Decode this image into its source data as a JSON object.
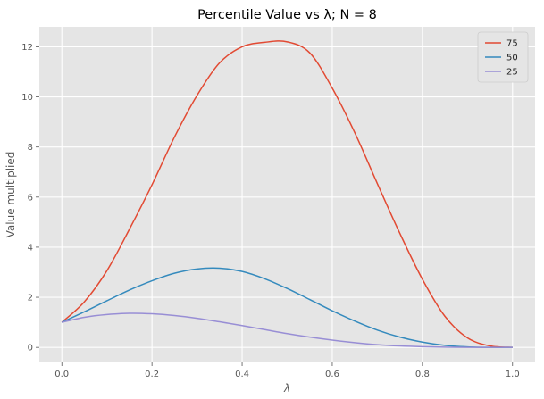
{
  "chart_data": {
    "type": "line",
    "title": "Percentile Value vs λ; N = 8",
    "xlabel": "λ",
    "ylabel": "Value multiplied",
    "xlim": [
      -0.05,
      1.05
    ],
    "ylim": [
      -0.6,
      12.8
    ],
    "xticks": [
      0.0,
      0.2,
      0.4,
      0.6,
      0.8,
      1.0
    ],
    "xtick_labels": [
      "0.0",
      "0.2",
      "0.4",
      "0.6",
      "0.8",
      "1.0"
    ],
    "yticks": [
      0,
      2,
      4,
      6,
      8,
      10,
      12
    ],
    "ytick_labels": [
      "0",
      "2",
      "4",
      "6",
      "8",
      "10",
      "12"
    ],
    "grid": true,
    "legend_position": "top-right",
    "x": [
      0.0,
      0.05,
      0.1,
      0.15,
      0.2,
      0.25,
      0.3,
      0.35,
      0.4,
      0.45,
      0.5,
      0.55,
      0.6,
      0.65,
      0.7,
      0.75,
      0.8,
      0.85,
      0.9,
      0.95,
      1.0
    ],
    "series": [
      {
        "name": "75",
        "color": "#E24A33",
        "values": [
          1.0,
          1.82,
          3.06,
          4.72,
          6.49,
          8.4,
          10.06,
          11.36,
          12.0,
          12.18,
          12.2,
          11.76,
          10.35,
          8.57,
          6.54,
          4.55,
          2.72,
          1.24,
          0.38,
          0.06,
          0.0
        ]
      },
      {
        "name": "50",
        "color": "#348ABD",
        "values": [
          1.0,
          1.42,
          1.86,
          2.29,
          2.66,
          2.96,
          3.13,
          3.16,
          3.03,
          2.74,
          2.35,
          1.91,
          1.46,
          1.05,
          0.69,
          0.41,
          0.21,
          0.08,
          0.02,
          0.0,
          0.0
        ]
      },
      {
        "name": "25",
        "color": "#988ED5",
        "values": [
          1.0,
          1.2,
          1.31,
          1.36,
          1.34,
          1.27,
          1.16,
          1.02,
          0.87,
          0.71,
          0.55,
          0.41,
          0.29,
          0.19,
          0.11,
          0.06,
          0.03,
          0.01,
          0.0,
          0.0,
          0.0
        ]
      }
    ]
  },
  "colors": {
    "plot_background": "#E5E5E5",
    "grid": "#FFFFFF"
  }
}
